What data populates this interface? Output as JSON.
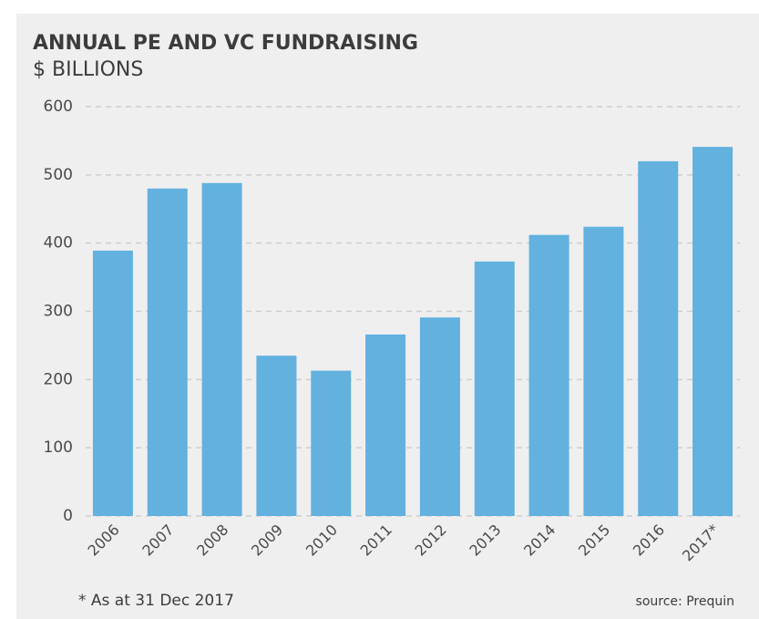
{
  "chart_data": {
    "type": "bar",
    "title": "ANNUAL PE AND VC FUNDRAISING",
    "subtitle": "$ BILLIONS",
    "categories": [
      "2006",
      "2007",
      "2008",
      "2009",
      "2010",
      "2011",
      "2012",
      "2013",
      "2014",
      "2015",
      "2016",
      "2017*"
    ],
    "values": [
      389,
      480,
      488,
      235,
      213,
      266,
      291,
      373,
      412,
      424,
      520,
      541
    ],
    "color": "#62b1df",
    "ylim": [
      0,
      600
    ],
    "yticks": [
      0,
      100,
      200,
      300,
      400,
      500,
      600
    ],
    "grid": true,
    "footnote": "* As at 31 Dec 2017",
    "source": "source: Prequin"
  }
}
